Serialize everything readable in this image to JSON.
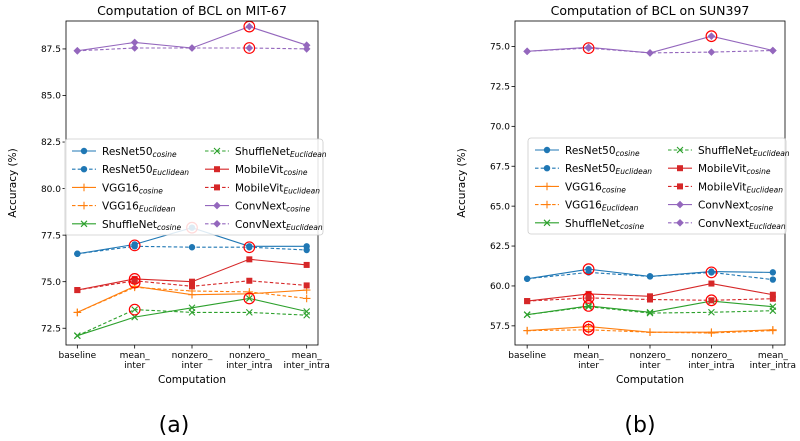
{
  "chart_data": [
    {
      "type": "line",
      "title": "Computation of BCL on MIT-67",
      "xlabel": "Computation",
      "ylabel": "Accuracy (%)",
      "panel_label": "(a)",
      "categories": [
        [
          "baseline"
        ],
        [
          "mean_",
          "inter"
        ],
        [
          "nonzero_",
          "inter"
        ],
        [
          "nonzero_",
          "inter_intra"
        ],
        [
          "mean_",
          "inter_intra"
        ]
      ],
      "ylim": [
        71.6,
        89.0
      ],
      "yticks": [
        "72.5",
        "75.0",
        "77.5",
        "80.0",
        "82.5",
        "85.0",
        "87.5"
      ],
      "legend_position": "center",
      "series": [
        {
          "name": "ResNet50",
          "sub": "cosine",
          "color": "#1f77b4",
          "marker": "o",
          "dash": false,
          "values": [
            76.5,
            77.0,
            77.9,
            76.9,
            76.9
          ]
        },
        {
          "name": "ResNet50",
          "sub": "Euclidean",
          "color": "#1f77b4",
          "marker": "o",
          "dash": true,
          "values": [
            76.5,
            76.9,
            76.85,
            76.85,
            76.7
          ]
        },
        {
          "name": "VGG16",
          "sub": "cosine",
          "color": "#ff7f0e",
          "marker": "+",
          "dash": false,
          "values": [
            73.35,
            74.75,
            74.3,
            74.35,
            74.55
          ]
        },
        {
          "name": "VGG16",
          "sub": "Euclidean",
          "color": "#ff7f0e",
          "marker": "+",
          "dash": true,
          "values": [
            73.35,
            74.7,
            74.5,
            74.45,
            74.1
          ]
        },
        {
          "name": "ShuffleNet",
          "sub": "cosine",
          "color": "#2ca02c",
          "marker": "x",
          "dash": false,
          "values": [
            72.1,
            73.1,
            73.6,
            74.1,
            73.4
          ]
        },
        {
          "name": "ShuffleNet",
          "sub": "Euclidean",
          "color": "#2ca02c",
          "marker": "x",
          "dash": true,
          "values": [
            72.1,
            73.5,
            73.35,
            73.35,
            73.2
          ]
        },
        {
          "name": "MobileVit",
          "sub": "cosine",
          "color": "#d62728",
          "marker": "s",
          "dash": false,
          "values": [
            74.55,
            75.15,
            75.0,
            76.2,
            75.9
          ]
        },
        {
          "name": "MobileVit",
          "sub": "Euclidean",
          "color": "#d62728",
          "marker": "s",
          "dash": true,
          "values": [
            74.55,
            75.05,
            74.75,
            75.05,
            74.8
          ]
        },
        {
          "name": "ConvNext",
          "sub": "cosine",
          "color": "#9467bd",
          "marker": "D",
          "dash": false,
          "values": [
            87.4,
            87.85,
            87.55,
            88.7,
            87.7
          ]
        },
        {
          "name": "ConvNext",
          "sub": "Euclidean",
          "color": "#9467bd",
          "marker": "D",
          "dash": true,
          "values": [
            87.4,
            87.55,
            87.55,
            87.55,
            87.5
          ]
        }
      ],
      "highlights": [
        [
          1,
          76.95
        ],
        [
          2,
          77.9
        ],
        [
          3,
          76.85
        ],
        [
          1,
          75.15
        ],
        [
          1,
          74.95
        ],
        [
          3,
          74.1
        ],
        [
          1,
          73.5
        ],
        [
          3,
          88.7
        ],
        [
          3,
          87.55
        ]
      ]
    },
    {
      "type": "line",
      "title": "Computation of BCL on SUN397",
      "xlabel": "Computation",
      "ylabel": "Accuracy (%)",
      "panel_label": "(b)",
      "categories": [
        [
          "baseline"
        ],
        [
          "mean_",
          "inter"
        ],
        [
          "nonzero_",
          "inter"
        ],
        [
          "nonzero_",
          "inter_intra"
        ],
        [
          "mean_",
          "inter_intra"
        ]
      ],
      "ylim": [
        56.3,
        76.6
      ],
      "yticks": [
        "57.5",
        "60.0",
        "62.5",
        "65.0",
        "67.5",
        "70.0",
        "72.5",
        "75.0"
      ],
      "legend_position": "center",
      "series": [
        {
          "name": "ResNet50",
          "sub": "cosine",
          "color": "#1f77b4",
          "marker": "o",
          "dash": false,
          "values": [
            60.45,
            61.05,
            60.6,
            60.9,
            60.85
          ]
        },
        {
          "name": "ResNet50",
          "sub": "Euclidean",
          "color": "#1f77b4",
          "marker": "o",
          "dash": true,
          "values": [
            60.45,
            60.85,
            60.6,
            60.85,
            60.4
          ]
        },
        {
          "name": "VGG16",
          "sub": "cosine",
          "color": "#ff7f0e",
          "marker": "+",
          "dash": false,
          "values": [
            57.2,
            57.45,
            57.1,
            57.1,
            57.25
          ]
        },
        {
          "name": "VGG16",
          "sub": "Euclidean",
          "color": "#ff7f0e",
          "marker": "+",
          "dash": true,
          "values": [
            57.2,
            57.25,
            57.1,
            57.05,
            57.2
          ]
        },
        {
          "name": "ShuffleNet",
          "sub": "cosine",
          "color": "#2ca02c",
          "marker": "x",
          "dash": false,
          "values": [
            58.2,
            58.75,
            58.35,
            59.05,
            58.7
          ]
        },
        {
          "name": "ShuffleNet",
          "sub": "Euclidean",
          "color": "#2ca02c",
          "marker": "x",
          "dash": true,
          "values": [
            58.2,
            58.7,
            58.3,
            58.35,
            58.45
          ]
        },
        {
          "name": "MobileVit",
          "sub": "cosine",
          "color": "#d62728",
          "marker": "s",
          "dash": false,
          "values": [
            59.05,
            59.5,
            59.35,
            60.15,
            59.45
          ]
        },
        {
          "name": "MobileVit",
          "sub": "Euclidean",
          "color": "#d62728",
          "marker": "s",
          "dash": true,
          "values": [
            59.05,
            59.25,
            59.15,
            59.1,
            59.2
          ]
        },
        {
          "name": "ConvNext",
          "sub": "cosine",
          "color": "#9467bd",
          "marker": "D",
          "dash": false,
          "values": [
            74.7,
            74.95,
            74.6,
            75.65,
            74.75
          ]
        },
        {
          "name": "ConvNext",
          "sub": "Euclidean",
          "color": "#9467bd",
          "marker": "D",
          "dash": true,
          "values": [
            74.7,
            74.9,
            74.6,
            74.65,
            74.75
          ]
        }
      ],
      "highlights": [
        [
          1,
          61.05
        ],
        [
          3,
          60.85
        ],
        [
          1,
          59.25
        ],
        [
          3,
          59.1
        ],
        [
          1,
          58.75
        ],
        [
          1,
          57.45
        ],
        [
          1,
          57.25
        ],
        [
          1,
          74.9
        ],
        [
          3,
          75.65
        ]
      ]
    }
  ]
}
